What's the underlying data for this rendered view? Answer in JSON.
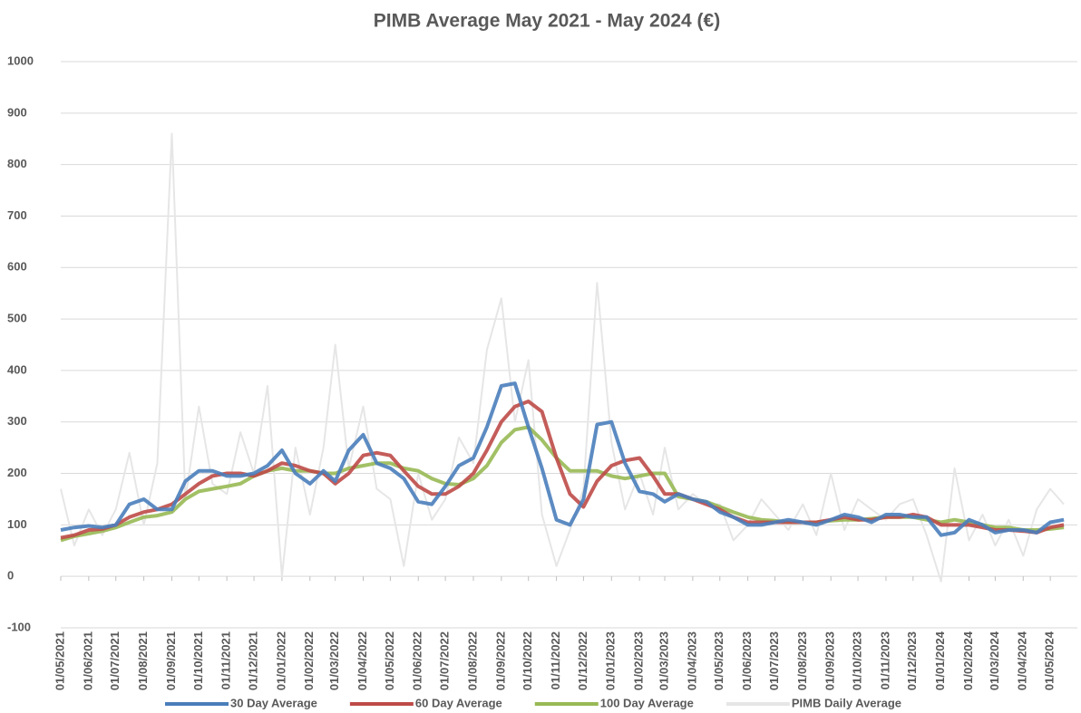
{
  "chart_data": {
    "type": "line",
    "title": "PIMB Average May 2021 - May 2024 (€)",
    "x": [
      "01/05/2021",
      "16/05/2021",
      "01/06/2021",
      "16/06/2021",
      "01/07/2021",
      "16/07/2021",
      "01/08/2021",
      "16/08/2021",
      "01/09/2021",
      "16/09/2021",
      "01/10/2021",
      "16/10/2021",
      "01/11/2021",
      "16/11/2021",
      "01/12/2021",
      "16/12/2021",
      "01/01/2022",
      "16/01/2022",
      "01/02/2022",
      "16/02/2022",
      "01/03/2022",
      "16/03/2022",
      "01/04/2022",
      "16/04/2022",
      "01/05/2022",
      "16/05/2022",
      "01/06/2022",
      "16/06/2022",
      "01/07/2022",
      "16/07/2022",
      "01/08/2022",
      "16/08/2022",
      "01/09/2022",
      "16/09/2022",
      "01/10/2022",
      "16/10/2022",
      "01/11/2022",
      "16/11/2022",
      "01/12/2022",
      "16/12/2022",
      "01/01/2023",
      "16/01/2023",
      "01/02/2023",
      "16/02/2023",
      "01/03/2023",
      "16/03/2023",
      "01/04/2023",
      "16/04/2023",
      "01/05/2023",
      "16/05/2023",
      "01/06/2023",
      "16/06/2023",
      "01/07/2023",
      "16/07/2023",
      "01/08/2023",
      "16/08/2023",
      "01/09/2023",
      "16/09/2023",
      "01/10/2023",
      "16/10/2023",
      "01/11/2023",
      "16/11/2023",
      "01/12/2023",
      "16/12/2023",
      "01/01/2024",
      "16/01/2024",
      "01/02/2024",
      "16/02/2024",
      "01/03/2024",
      "16/03/2024",
      "01/04/2024",
      "16/04/2024",
      "01/05/2024",
      "16/05/2024"
    ],
    "series": [
      {
        "name": "PIMB Daily Average",
        "color": "#e6e6e6",
        "values": [
          170,
          60,
          130,
          80,
          130,
          240,
          100,
          220,
          860,
          150,
          330,
          180,
          160,
          280,
          200,
          370,
          0,
          250,
          120,
          250,
          450,
          210,
          330,
          170,
          150,
          20,
          200,
          110,
          150,
          270,
          220,
          440,
          540,
          300,
          420,
          120,
          20,
          90,
          170,
          570,
          260,
          130,
          200,
          120,
          250,
          130,
          160,
          140,
          140,
          70,
          100,
          150,
          120,
          90,
          140,
          80,
          200,
          90,
          150,
          130,
          110,
          140,
          150,
          80,
          -10,
          210,
          70,
          120,
          60,
          110,
          40,
          130,
          170,
          140
        ]
      },
      {
        "name": "100 Day Average",
        "color": "#98b954",
        "values": [
          70,
          78,
          83,
          88,
          95,
          105,
          115,
          118,
          125,
          150,
          165,
          170,
          175,
          180,
          195,
          205,
          210,
          205,
          205,
          200,
          200,
          210,
          215,
          220,
          220,
          210,
          205,
          190,
          180,
          178,
          190,
          215,
          260,
          285,
          290,
          265,
          230,
          205,
          205,
          205,
          195,
          190,
          195,
          200,
          200,
          155,
          150,
          145,
          135,
          125,
          115,
          110,
          108,
          105,
          105,
          105,
          108,
          110,
          110,
          112,
          115,
          115,
          115,
          110,
          105,
          110,
          105,
          100,
          95,
          95,
          90,
          90,
          92,
          95
        ]
      },
      {
        "name": "60 Day Average",
        "color": "#be4b48",
        "values": [
          75,
          80,
          90,
          92,
          100,
          115,
          125,
          130,
          140,
          160,
          180,
          195,
          200,
          200,
          195,
          205,
          220,
          215,
          205,
          200,
          180,
          200,
          235,
          240,
          235,
          205,
          175,
          160,
          160,
          175,
          200,
          245,
          300,
          330,
          340,
          320,
          230,
          160,
          135,
          185,
          215,
          225,
          230,
          195,
          160,
          160,
          150,
          140,
          130,
          115,
          105,
          105,
          105,
          105,
          105,
          105,
          110,
          115,
          110,
          110,
          115,
          115,
          120,
          115,
          100,
          100,
          100,
          95,
          90,
          90,
          88,
          85,
          95,
          100
        ]
      },
      {
        "name": "30 Day Average",
        "color": "#4a7ebb",
        "values": [
          90,
          95,
          98,
          95,
          100,
          140,
          150,
          130,
          130,
          185,
          205,
          205,
          195,
          195,
          200,
          215,
          245,
          200,
          180,
          205,
          185,
          245,
          275,
          220,
          210,
          190,
          145,
          140,
          175,
          215,
          230,
          290,
          370,
          375,
          290,
          210,
          110,
          100,
          150,
          295,
          300,
          220,
          165,
          160,
          145,
          160,
          150,
          145,
          125,
          115,
          100,
          100,
          105,
          110,
          105,
          100,
          110,
          120,
          115,
          105,
          120,
          120,
          115,
          115,
          80,
          85,
          110,
          100,
          85,
          90,
          90,
          85,
          105,
          110
        ]
      }
    ],
    "legend_order": [
      "30 Day Average",
      "60 Day Average",
      "100 Day Average",
      "PIMB Daily Average"
    ],
    "legend": "bottom",
    "grid": true,
    "xlim": [
      "01/05/2021",
      "31/05/2024"
    ],
    "xticks": [
      "01/05/2021",
      "01/06/2021",
      "01/07/2021",
      "01/08/2021",
      "01/09/2021",
      "01/10/2021",
      "01/11/2021",
      "01/12/2021",
      "01/01/2022",
      "01/02/2022",
      "01/03/2022",
      "01/04/2022",
      "01/05/2022",
      "01/06/2022",
      "01/07/2022",
      "01/08/2022",
      "01/09/2022",
      "01/10/2022",
      "01/11/2022",
      "01/12/2022",
      "01/01/2023",
      "01/02/2023",
      "01/03/2023",
      "01/04/2023",
      "01/05/2023",
      "01/06/2023",
      "01/07/2023",
      "01/08/2023",
      "01/09/2023",
      "01/10/2023",
      "01/11/2023",
      "01/12/2023",
      "01/01/2024",
      "01/02/2024",
      "01/03/2024",
      "01/04/2024",
      "01/05/2024"
    ],
    "ylim": [
      -100,
      1000
    ],
    "yticks": [
      -100,
      0,
      100,
      200,
      300,
      400,
      500,
      600,
      700,
      800,
      900,
      1000
    ]
  }
}
